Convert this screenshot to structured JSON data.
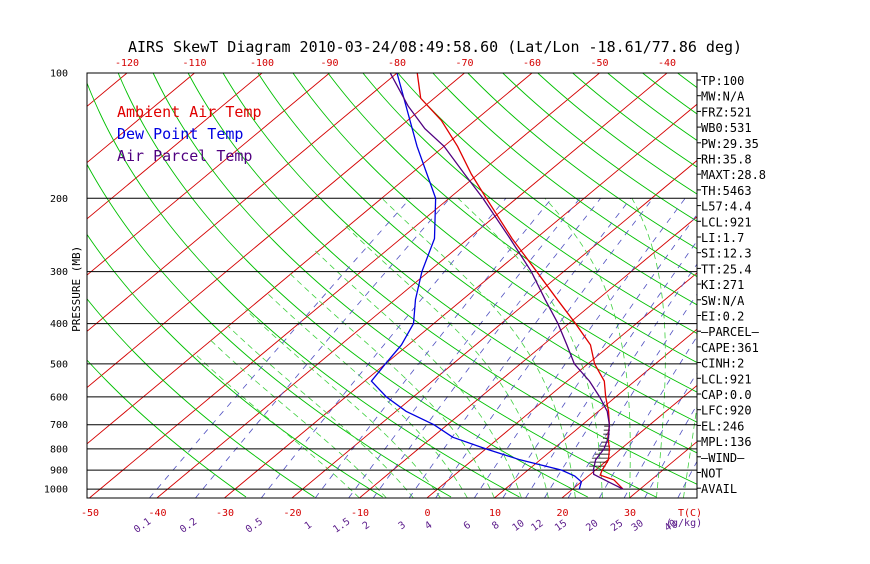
{
  "chart_data": {
    "type": "line",
    "title": "AIRS SkewT Diagram 2010-03-24/08:49:58.60 (Lat/Lon -18.61/77.86 deg)",
    "ylabel": "PRESSURE (MB)",
    "xlabel": "T(C)",
    "mixing_ratio_unit": "(g/kg)",
    "y_scale": "log",
    "ylim": [
      1050,
      100
    ],
    "xlim_bottom": [
      -55,
      35
    ],
    "pressure_ticks": [
      100,
      200,
      300,
      400,
      500,
      600,
      700,
      800,
      900,
      1000
    ],
    "isobar_lines": [
      200,
      300,
      400,
      500,
      600,
      700,
      800,
      900,
      1000
    ],
    "top_temp_ticks": [
      -120,
      -110,
      -100,
      -90,
      -80,
      -70,
      -60,
      -50,
      -40
    ],
    "bottom_temp_ticks": [
      -50,
      -40,
      -30,
      -20,
      -10,
      0,
      10,
      20,
      30
    ],
    "mixing_ratio_labels": [
      "0.1",
      "0.2",
      "0.5",
      "1",
      "1.5",
      "2",
      "3",
      "4",
      "6",
      "8",
      "10",
      "12",
      "15",
      "20",
      "25",
      "30",
      "40"
    ],
    "legend": [
      "Ambient Air Temp",
      "Dew Point Temp",
      "Air Parcel Temp"
    ],
    "colors": {
      "ambient": "#e00000",
      "dewpoint": "#0000e0",
      "parcel": "#500080",
      "isotherm": "#d40000",
      "dry_adiabat": "#00c000",
      "moist_adiabat": "#40d040",
      "mixing_ratio": "#5050c0",
      "cape_hatch": "#000000"
    },
    "series": [
      {
        "name": "Ambient Air Temp",
        "points": [
          [
            1000,
            27.5
          ],
          [
            950,
            24.5
          ],
          [
            925,
            21.6
          ],
          [
            900,
            21.0
          ],
          [
            850,
            20.1
          ],
          [
            800,
            18.3
          ],
          [
            750,
            16.0
          ],
          [
            700,
            14.0
          ],
          [
            650,
            11.5
          ],
          [
            600,
            8.5
          ],
          [
            550,
            5.5
          ],
          [
            500,
            1.0
          ],
          [
            450,
            -3.0
          ],
          [
            400,
            -9.0
          ],
          [
            350,
            -16.0
          ],
          [
            300,
            -24.0
          ],
          [
            250,
            -33.5
          ],
          [
            200,
            -44.5
          ],
          [
            175,
            -51.0
          ],
          [
            150,
            -58.0
          ],
          [
            130,
            -65.0
          ],
          [
            115,
            -72.0
          ],
          [
            100,
            -77.0
          ]
        ]
      },
      {
        "name": "Dew Point Temp",
        "points": [
          [
            1000,
            21.0
          ],
          [
            960,
            20.0
          ],
          [
            930,
            18.0
          ],
          [
            900,
            15.0
          ],
          [
            850,
            7.0
          ],
          [
            800,
            0.0
          ],
          [
            750,
            -7.0
          ],
          [
            700,
            -12.0
          ],
          [
            650,
            -18.5
          ],
          [
            600,
            -24.0
          ],
          [
            550,
            -29.0
          ],
          [
            500,
            -30.0
          ],
          [
            450,
            -31.0
          ],
          [
            400,
            -33.0
          ],
          [
            350,
            -37.0
          ],
          [
            300,
            -41.0
          ],
          [
            250,
            -45.0
          ],
          [
            200,
            -52.0
          ],
          [
            150,
            -64.0
          ],
          [
            100,
            -80.0
          ]
        ]
      },
      {
        "name": "Air Parcel Temp",
        "points": [
          [
            1000,
            27.5
          ],
          [
            960,
            24.0
          ],
          [
            921,
            20.5
          ],
          [
            900,
            19.7
          ],
          [
            850,
            18.2
          ],
          [
            800,
            17.5
          ],
          [
            750,
            16.1
          ],
          [
            700,
            14.0
          ],
          [
            650,
            11.3
          ],
          [
            600,
            7.6
          ],
          [
            550,
            3.3
          ],
          [
            500,
            -2.0
          ],
          [
            450,
            -6.5
          ],
          [
            400,
            -11.6
          ],
          [
            350,
            -17.8
          ],
          [
            300,
            -24.8
          ],
          [
            250,
            -33.8
          ],
          [
            200,
            -45.0
          ],
          [
            175,
            -52.0
          ],
          [
            150,
            -60.0
          ],
          [
            136,
            -66.0
          ],
          [
            120,
            -72.5
          ],
          [
            100,
            -81.0
          ]
        ]
      }
    ]
  },
  "indices": [
    "TP:100",
    "MW:N/A",
    "FRZ:521",
    "WB0:531",
    "PW:29.35",
    "RH:35.8",
    "MAXT:28.8",
    "TH:5463",
    "L57:4.4",
    "LCL:921",
    "LI:1.7",
    "SI:12.3",
    "TT:25.4",
    "KI:271",
    "SW:N/A",
    "EI:0.2",
    "—PARCEL—",
    "CAPE:361",
    "CINH:2",
    "LCL:921",
    "CAP:0.0",
    "LFC:920",
    "EL:246",
    "MPL:136",
    "—WIND—",
    "NOT",
    "AVAIL"
  ]
}
